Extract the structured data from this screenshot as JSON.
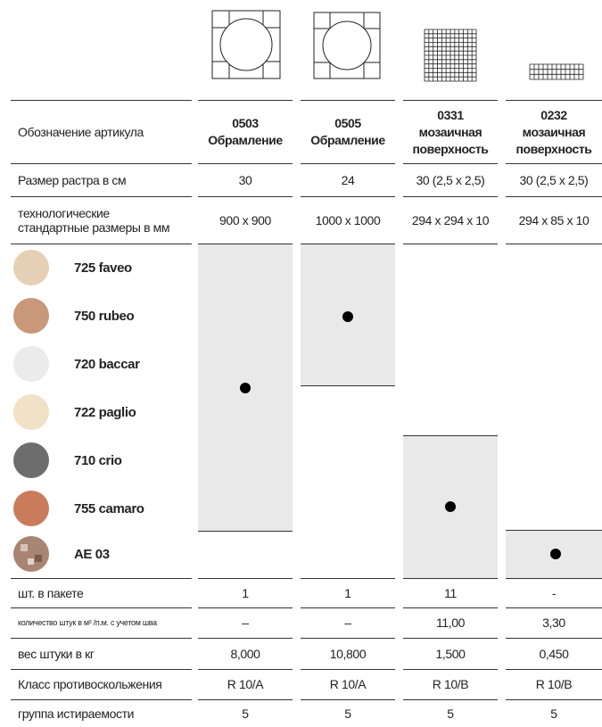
{
  "header_row": {
    "label": "Обозначение артикула",
    "cells": [
      {
        "code": "0503",
        "lines": [
          "Обрамление"
        ]
      },
      {
        "code": "0505",
        "lines": [
          "Обрамление"
        ]
      },
      {
        "code": "0331",
        "lines": [
          "мозаичная",
          "поверхность"
        ]
      },
      {
        "code": "0232",
        "lines": [
          "мозаичная",
          "поверхность"
        ]
      }
    ]
  },
  "spec_rows": [
    {
      "label": "Размер растра в см",
      "cells": [
        "30",
        "24",
        "30 (2,5 x 2,5)",
        "30 (2,5 x 2,5)"
      ]
    },
    {
      "label": "технологические стандартные размеры в мм",
      "cells": [
        "900 x 900",
        "1000 x 1000",
        "294 x 294 x 10",
        "294 x 85 x 10"
      ]
    }
  ],
  "colors": [
    "725 faveo",
    "750 rubeo",
    "720 baccar",
    "722 paglio",
    "710 crio",
    "755 camaro",
    "AE 03"
  ],
  "bottom_rows": [
    {
      "label": "шт. в пакете",
      "cells": [
        "1",
        "1",
        "11",
        "-"
      ]
    },
    {
      "label": "количество штук в м² /п.м. с учетом шва",
      "cells": [
        "–",
        "–",
        "11,00",
        "3,30"
      ]
    },
    {
      "label": "вес штуки в кг",
      "cells": [
        "8,000",
        "10,800",
        "1,500",
        "0,450"
      ]
    },
    {
      "label": "Класс противоскольжения",
      "cells": [
        "R 10/A",
        "R 10/A",
        "R 10/B",
        "R 10/B"
      ]
    },
    {
      "label": "группа истираемости",
      "cells": [
        "5",
        "5",
        "5",
        "5"
      ]
    }
  ]
}
